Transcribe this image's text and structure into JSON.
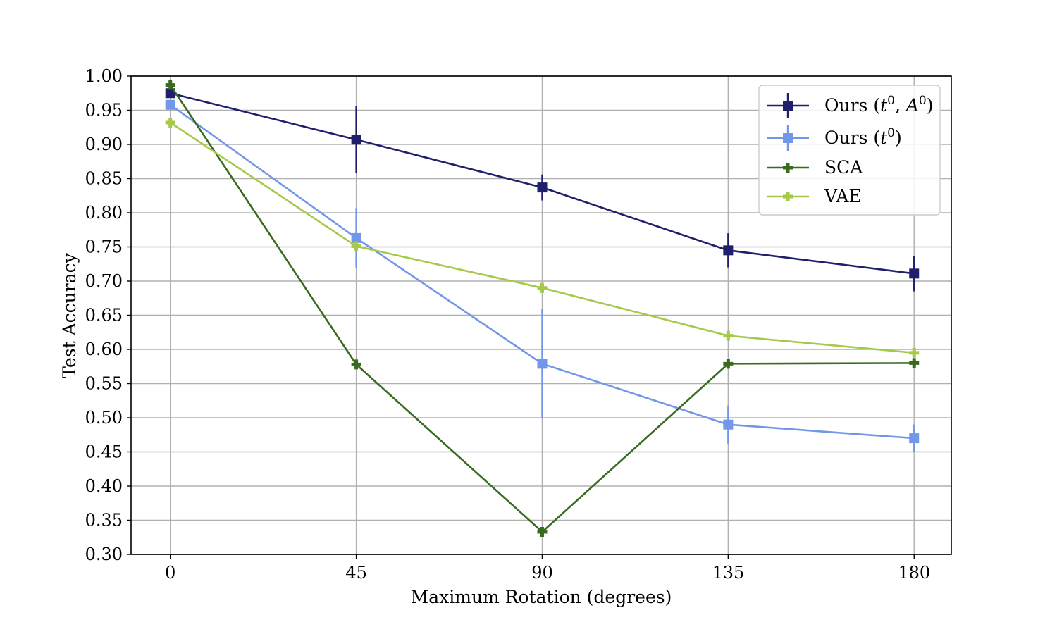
{
  "chart_data": {
    "type": "line",
    "title": "",
    "xlabel": "Maximum Rotation (degrees)",
    "ylabel": "Test Accuracy",
    "x": [
      0,
      45,
      90,
      135,
      180
    ],
    "x_ticks": [
      "0",
      "45",
      "90",
      "135",
      "180"
    ],
    "y_ticks": [
      "0.30",
      "0.35",
      "0.40",
      "0.45",
      "0.50",
      "0.55",
      "0.60",
      "0.65",
      "0.70",
      "0.75",
      "0.80",
      "0.85",
      "0.90",
      "0.95",
      "1.00"
    ],
    "xlim": [
      -9.5,
      189
    ],
    "ylim": [
      0.3,
      1.0
    ],
    "grid": true,
    "legend_position": "top-right",
    "series": [
      {
        "name": "Ours (t⁰, A⁰)",
        "legend_main": "Ours (",
        "legend_t": "t",
        "legend_sep": ", ",
        "legend_A": "A",
        "legend_sup": "0",
        "color": "#1f1f6b",
        "marker": "square",
        "values": [
          0.975,
          0.907,
          0.837,
          0.745,
          0.711
        ],
        "errors": [
          0.0,
          0.049,
          0.019,
          0.025,
          0.026
        ]
      },
      {
        "name": "Ours (t⁰)",
        "legend_main": "Ours (",
        "legend_t": "t",
        "legend_sup": "0",
        "color": "#7397e8",
        "marker": "square",
        "values": [
          0.958,
          0.763,
          0.579,
          0.49,
          0.47
        ],
        "errors": [
          0.0,
          0.044,
          0.08,
          0.028,
          0.02
        ]
      },
      {
        "name": "SCA",
        "color": "#386b1e",
        "marker": "plus",
        "values": [
          0.987,
          0.578,
          0.333,
          0.579,
          0.58
        ],
        "errors": [
          0,
          0,
          0,
          0,
          0
        ]
      },
      {
        "name": "VAE",
        "color": "#a6c94a",
        "marker": "plus",
        "values": [
          0.932,
          0.751,
          0.69,
          0.62,
          0.595
        ],
        "errors": [
          0,
          0,
          0,
          0,
          0
        ]
      }
    ]
  }
}
